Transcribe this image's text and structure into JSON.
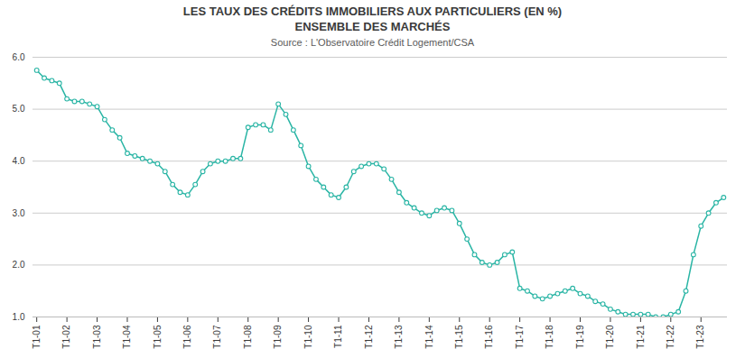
{
  "chart_data": {
    "type": "line",
    "title": "LES TAUX DES CRÉDITS IMMOBILIERS AUX PARTICULIERS (EN %)",
    "subtitle": "ENSEMBLE DES MARCHÉS",
    "annotations": [
      "Source : L'Observatoire Crédit Logement/CSA"
    ],
    "categories": [
      "T1-01",
      null,
      null,
      null,
      "T1-02",
      null,
      null,
      null,
      "T1-03",
      null,
      null,
      null,
      "T1-04",
      null,
      null,
      null,
      "T1-05",
      null,
      null,
      null,
      "T1-06",
      null,
      null,
      null,
      "T1-07",
      null,
      null,
      null,
      "T1-08",
      null,
      null,
      null,
      "T1-09",
      null,
      null,
      null,
      "T1-10",
      null,
      null,
      null,
      "T1-11",
      null,
      null,
      null,
      "T1-12",
      null,
      null,
      null,
      "T1-13",
      null,
      null,
      null,
      "T1-14",
      null,
      null,
      null,
      "T1-15",
      null,
      null,
      null,
      "T1-16",
      null,
      null,
      null,
      "T1-17",
      null,
      null,
      null,
      "T1-18",
      null,
      null,
      null,
      "T1-19",
      null,
      null,
      null,
      "T1-20",
      null,
      null,
      null,
      "T1-21",
      null,
      null,
      null,
      "T1-22",
      null,
      null,
      null,
      "T1-23",
      null,
      null,
      null
    ],
    "values": [
      5.75,
      5.6,
      5.55,
      5.5,
      5.2,
      5.15,
      5.15,
      5.1,
      5.05,
      4.8,
      4.6,
      4.45,
      4.15,
      4.1,
      4.05,
      4.0,
      3.95,
      3.8,
      3.55,
      3.4,
      3.35,
      3.55,
      3.8,
      3.95,
      4.0,
      4.0,
      4.05,
      4.05,
      4.65,
      4.7,
      4.7,
      4.6,
      5.1,
      4.9,
      4.6,
      4.3,
      3.9,
      3.65,
      3.5,
      3.35,
      3.3,
      3.5,
      3.8,
      3.9,
      3.95,
      3.95,
      3.85,
      3.65,
      3.4,
      3.2,
      3.1,
      3.0,
      2.95,
      3.05,
      3.1,
      3.05,
      2.8,
      2.5,
      2.2,
      2.05,
      2.0,
      2.05,
      2.2,
      2.25,
      1.55,
      1.5,
      1.4,
      1.35,
      1.4,
      1.45,
      1.5,
      1.55,
      1.45,
      1.4,
      1.3,
      1.25,
      1.15,
      1.1,
      1.05,
      1.05,
      1.05,
      1.05,
      1.0,
      1.0,
      1.05,
      1.1,
      1.5,
      2.2,
      2.75,
      3.0,
      3.2,
      3.3
    ],
    "color": "#2ab5a5",
    "marker": "circle",
    "ylim": [
      1,
      6
    ],
    "yticks": [
      1,
      2,
      3,
      4,
      5,
      6
    ],
    "grid": true
  }
}
